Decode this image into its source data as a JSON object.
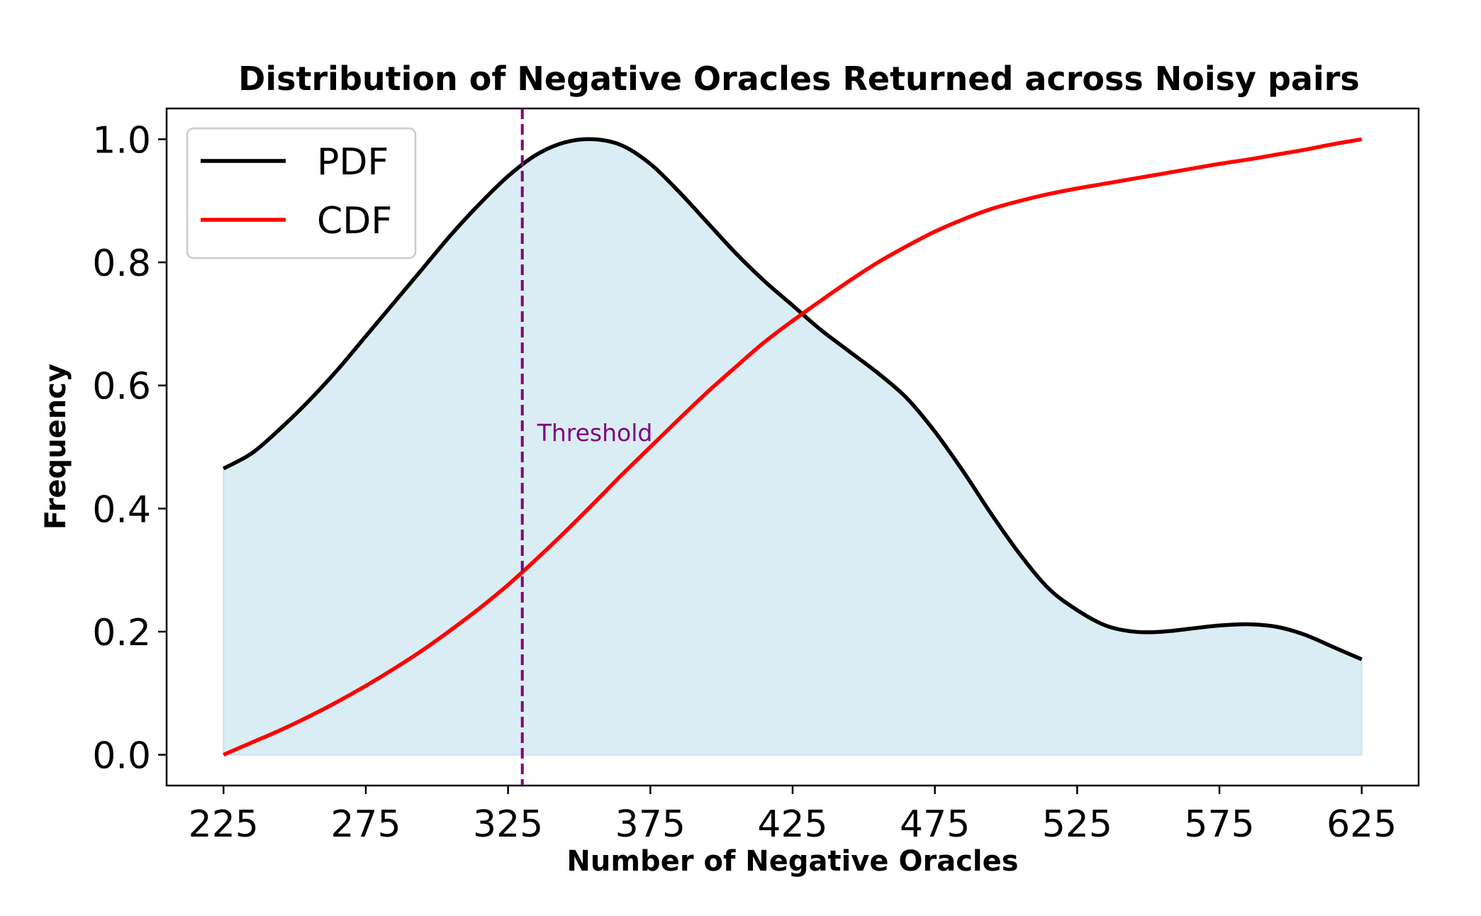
{
  "chart_data": {
    "type": "line",
    "title": "Distribution of Negative Oracles Returned across Noisy pairs",
    "xlabel": "Number of Negative Oracles",
    "ylabel": "Frequency",
    "xlim": [
      205,
      645
    ],
    "ylim": [
      -0.05,
      1.05
    ],
    "xticks": [
      225,
      275,
      325,
      375,
      425,
      475,
      525,
      575,
      625
    ],
    "xtick_labels": [
      "225",
      "275",
      "325",
      "375",
      "425",
      "475",
      "525",
      "575",
      "625"
    ],
    "yticks": [
      0.0,
      0.2,
      0.4,
      0.6,
      0.8,
      1.0
    ],
    "ytick_labels": [
      "0.0",
      "0.2",
      "0.4",
      "0.6",
      "0.8",
      "1.0"
    ],
    "grid": false,
    "legend_position": "top-left",
    "series": [
      {
        "name": "PDF",
        "color": "#000000",
        "fill_color": "#add8e6",
        "x": [
          225,
          235,
          245,
          255,
          265,
          275,
          285,
          295,
          305,
          315,
          325,
          335,
          345,
          355,
          365,
          375,
          385,
          395,
          405,
          415,
          425,
          435,
          445,
          455,
          465,
          475,
          485,
          495,
          505,
          515,
          525,
          535,
          545,
          555,
          565,
          575,
          585,
          595,
          605,
          615,
          625
        ],
        "y": [
          0.465,
          0.49,
          0.53,
          0.575,
          0.625,
          0.68,
          0.735,
          0.79,
          0.845,
          0.895,
          0.94,
          0.975,
          0.995,
          1.0,
          0.99,
          0.96,
          0.915,
          0.865,
          0.815,
          0.77,
          0.73,
          0.69,
          0.655,
          0.62,
          0.58,
          0.525,
          0.46,
          0.39,
          0.325,
          0.27,
          0.235,
          0.21,
          0.2,
          0.2,
          0.205,
          0.21,
          0.212,
          0.208,
          0.195,
          0.175,
          0.155
        ]
      },
      {
        "name": "CDF",
        "color": "#ff0000",
        "x": [
          225,
          235,
          245,
          255,
          265,
          275,
          285,
          295,
          305,
          315,
          325,
          335,
          345,
          355,
          365,
          375,
          385,
          395,
          405,
          415,
          425,
          435,
          445,
          455,
          465,
          475,
          485,
          495,
          505,
          515,
          525,
          535,
          545,
          555,
          565,
          575,
          585,
          595,
          605,
          615,
          625
        ],
        "y": [
          0.0,
          0.02,
          0.04,
          0.062,
          0.086,
          0.112,
          0.14,
          0.17,
          0.203,
          0.238,
          0.276,
          0.318,
          0.362,
          0.408,
          0.455,
          0.5,
          0.545,
          0.589,
          0.63,
          0.67,
          0.705,
          0.738,
          0.77,
          0.8,
          0.826,
          0.85,
          0.87,
          0.887,
          0.9,
          0.911,
          0.92,
          0.928,
          0.936,
          0.944,
          0.952,
          0.96,
          0.967,
          0.975,
          0.983,
          0.992,
          1.0
        ]
      }
    ],
    "threshold": {
      "x": 330,
      "label": "Threshold",
      "label_y": 0.51,
      "color": "#800080"
    }
  }
}
